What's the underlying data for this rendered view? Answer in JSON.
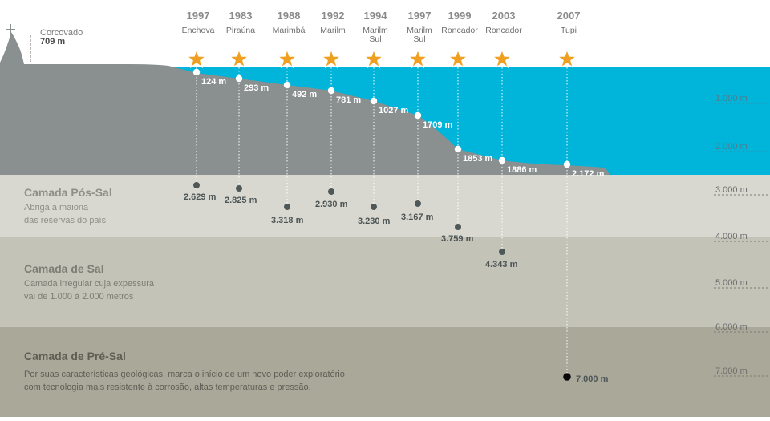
{
  "landmark": {
    "name": "Corcovado",
    "height": "709 m"
  },
  "layers": [
    {
      "title": "Camada Pós-Sal",
      "desc": [
        "Abriga a maioria",
        "das reservas do país"
      ],
      "color": "#d9d8d0",
      "text_color": "#8f8f86"
    },
    {
      "title": "Camada de Sal",
      "desc": [
        "Camada irregular cuja expessura",
        "vai de 1.000 à 2.000 metros"
      ],
      "color": "#c4c3b8",
      "text_color": "#7d7d74"
    },
    {
      "title": "Camada de Pré-Sal",
      "desc": [
        "Por suas  características geológicas, marca o início de um novo poder exploratório",
        "com tecnologia mais resistente  à corrosão, altas temperaturas e pressão."
      ],
      "color": "#a9a899",
      "text_color": "#5e5e55"
    }
  ],
  "colors": {
    "sea": "#00b4da",
    "seabed": "#8a8f90",
    "star": "#f0a020",
    "total_dot": "#0a0a0a"
  },
  "depth_scale": [
    "1.000 m",
    "2.000 m",
    "3.000 m",
    "4.000 m",
    "5.000 m",
    "6.000 m",
    "7.000 m"
  ],
  "fields": [
    {
      "year": "1997",
      "name": [
        "Enchova"
      ],
      "water_depth": "124 m",
      "total_depth": "2.629 m"
    },
    {
      "year": "1983",
      "name": [
        "Piraúna"
      ],
      "water_depth": "293 m",
      "total_depth": "2.825 m"
    },
    {
      "year": "1988",
      "name": [
        "Marimbá"
      ],
      "water_depth": "492 m",
      "total_depth": "3.318 m"
    },
    {
      "year": "1992",
      "name": [
        "Marilm"
      ],
      "water_depth": "781 m",
      "total_depth": "2.930 m"
    },
    {
      "year": "1994",
      "name": [
        "Marilm",
        "Sul"
      ],
      "water_depth": "1027 m",
      "total_depth": "3.230 m"
    },
    {
      "year": "1997",
      "name": [
        "Marilm",
        "Sul"
      ],
      "water_depth": "1709 m",
      "total_depth": "3.167 m"
    },
    {
      "year": "1999",
      "name": [
        "Roncador"
      ],
      "water_depth": "1853 m",
      "total_depth": "3.759 m"
    },
    {
      "year": "2003",
      "name": [
        "Roncador"
      ],
      "water_depth": "1886 m",
      "total_depth": "4.343 m"
    },
    {
      "year": "2007",
      "name": [
        "Tupi"
      ],
      "water_depth": "2.172 m",
      "total_depth": "7.000 m"
    }
  ]
}
